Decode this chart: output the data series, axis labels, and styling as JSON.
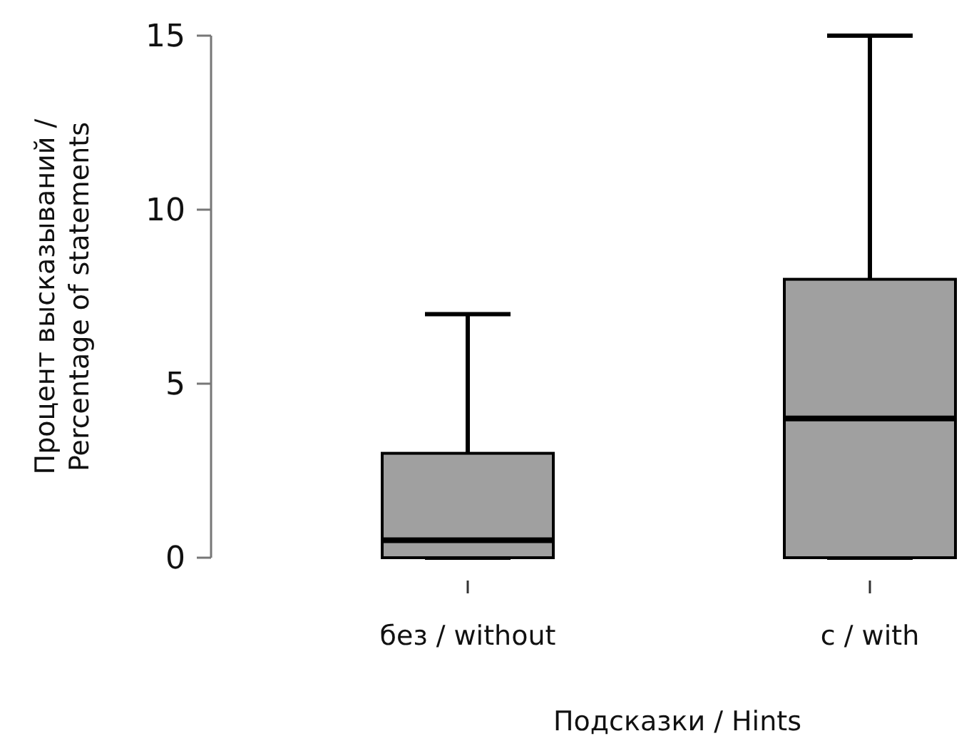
{
  "chart_data": {
    "type": "box",
    "xlabel": "Подсказки / Hints",
    "ylabel": "Процент высказываний / Percentage of statements",
    "categories": [
      "без / without",
      "с / with"
    ],
    "ylim": [
      0,
      15
    ],
    "yticks": [
      0,
      5,
      10,
      15
    ],
    "grid": false,
    "color": "#a0a0a0",
    "boxes": [
      {
        "low": 0,
        "q1": 0,
        "median": 0.5,
        "q3": 3,
        "high": 7
      },
      {
        "low": 0,
        "q1": 0,
        "median": 4,
        "q3": 8,
        "high": 15
      }
    ]
  }
}
